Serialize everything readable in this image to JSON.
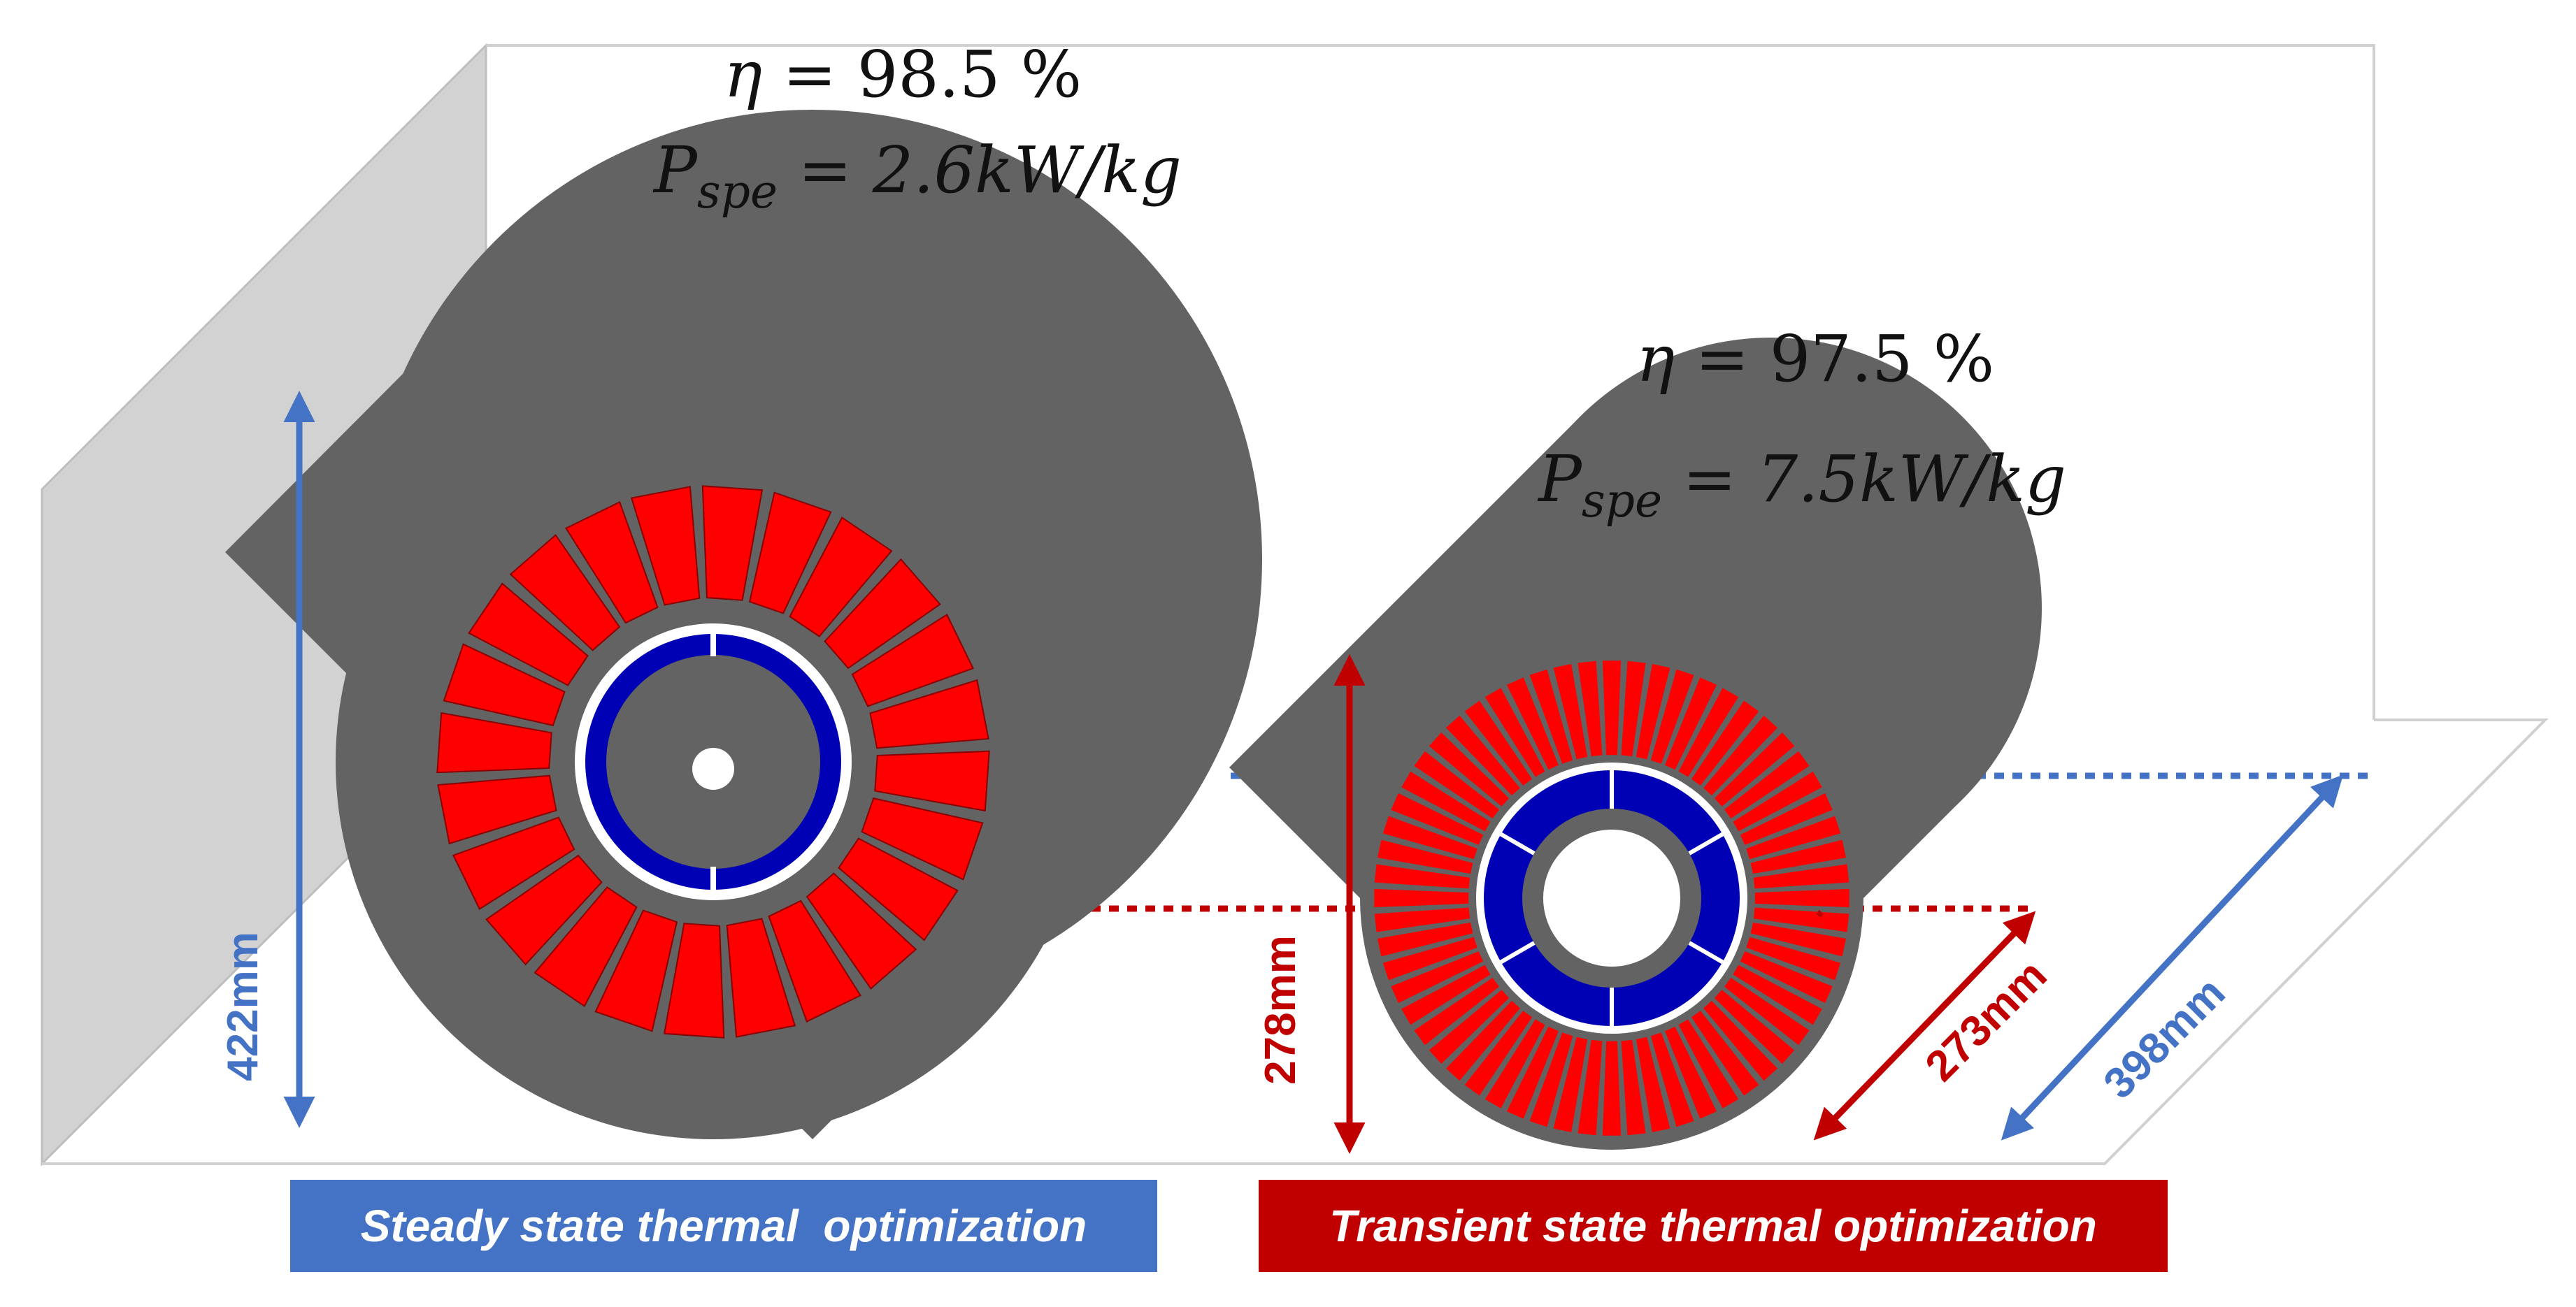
{
  "motor_steady": {
    "efficiency_symbol": "η",
    "efficiency_rest": " = 98.5 %",
    "power_symbol": "P",
    "power_subscript": "spe",
    "power_rest": " = 2.6kW/kg",
    "height_label": "422mm",
    "caption": "Steady state thermal  optimization",
    "caption_color": "#4472C4"
  },
  "motor_transient": {
    "efficiency_symbol": "η",
    "efficiency_rest": " = 97.5 %",
    "power_symbol": "P",
    "power_subscript": "spe",
    "power_rest": " = 7.5kW/kg",
    "height_label": "278mm",
    "depth_label": "273mm",
    "caption": "Transient state thermal optimization",
    "caption_color": "#C00000"
  },
  "depth_reference_label": "398mm",
  "colors": {
    "body": "#636363",
    "winding": "#FF0000",
    "magnet": "#0000B4",
    "steady_dim": "#4472C4",
    "transient_dim": "#C00000",
    "wall": "#D2D2D2"
  }
}
